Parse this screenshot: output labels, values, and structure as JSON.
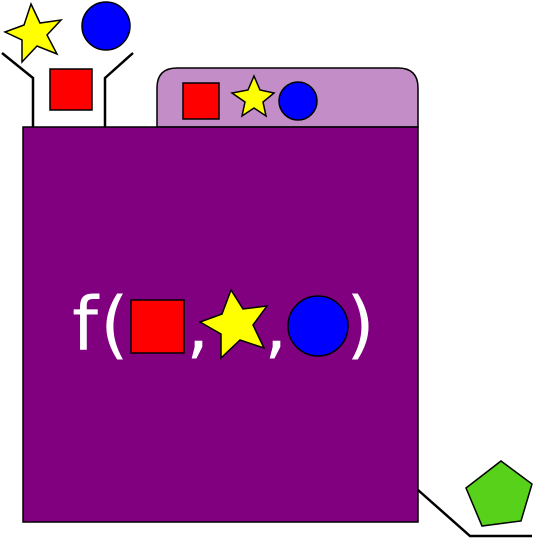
{
  "function_label": {
    "name": "f",
    "open_paren": "(",
    "comma_1": ",",
    "comma_2": ",",
    "close_paren": ")"
  },
  "colors": {
    "box_fill": "#800080",
    "tab_fill": "#c38ec8",
    "square": "#ff0000",
    "star": "#ffff00",
    "circle": "#0000ff",
    "pentagon": "#57d11a",
    "label_text": "#ffffff",
    "stroke": "#000000"
  },
  "icons": {
    "input_square": "red-square-icon",
    "input_star": "yellow-star-icon",
    "input_circle": "blue-circle-icon",
    "output": "green-pentagon-icon"
  }
}
